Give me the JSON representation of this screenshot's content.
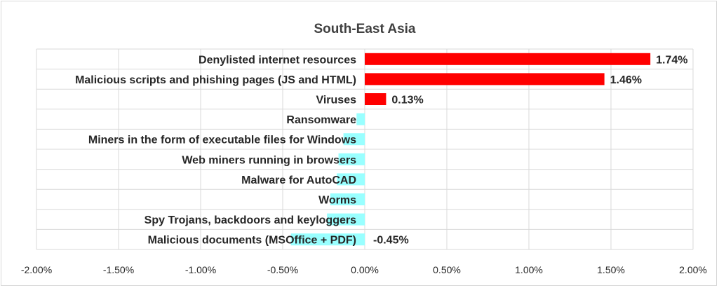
{
  "chart_data": {
    "type": "bar",
    "orientation": "horizontal",
    "title": "South-East Asia",
    "categories": [
      "Denylisted internet resources",
      "Malicious scripts and phishing pages (JS and HTML)",
      "Viruses",
      "Ransomware",
      "Miners in the form of executable files for Windows",
      "Web miners running in browsers",
      "Malware for AutoCAD",
      "Worms",
      "Spy Trojans, backdoors and keyloggers",
      "Malicious documents (MSOffice + PDF)"
    ],
    "values": [
      1.74,
      1.46,
      0.13,
      -0.05,
      -0.13,
      -0.16,
      -0.17,
      -0.21,
      -0.23,
      -0.45
    ],
    "data_labels": [
      "1.74%",
      "1.46%",
      "0.13%",
      "",
      "",
      "",
      "",
      "",
      "",
      "-0.45%"
    ],
    "xlim": [
      -2.0,
      2.0
    ],
    "x_ticks": [
      -2.0,
      -1.5,
      -1.0,
      -0.5,
      0.0,
      0.5,
      1.0,
      1.5,
      2.0
    ],
    "x_tick_labels": [
      "-2.00%",
      "-1.50%",
      "-1.00%",
      "-0.50%",
      "0.00%",
      "0.50%",
      "1.00%",
      "1.50%",
      "2.00%"
    ],
    "xlabel": "",
    "ylabel": "",
    "grid": true,
    "colors": {
      "positive": "#ff0000",
      "negative": "#99ffff",
      "grid": "#d9d9d9"
    }
  }
}
